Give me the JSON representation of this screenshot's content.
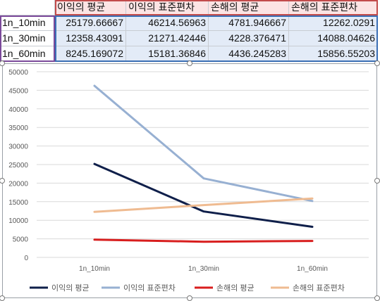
{
  "table": {
    "headers": [
      "이익의 평균",
      "이익의 표준편차",
      "손해의 평균",
      "손해의 표준편차"
    ],
    "rows": [
      {
        "label": "1n_10min",
        "values": [
          "25179.66667",
          "46214.56963",
          "4781.946667",
          "12262.0291"
        ]
      },
      {
        "label": "1n_30min",
        "values": [
          "12358.43091",
          "21271.42446",
          "4228.376471",
          "14088.04626"
        ]
      },
      {
        "label": "1n_60min",
        "values": [
          "8245.169072",
          "15181.36846",
          "4436.245283",
          "15856.55203"
        ]
      }
    ]
  },
  "chart_data": {
    "type": "line",
    "categories": [
      "1n_10min",
      "1n_30min",
      "1n_60min"
    ],
    "series": [
      {
        "name": "이익의 평균",
        "values": [
          25179.66667,
          12358.43091,
          8245.169072
        ],
        "color": "#0f1f4a"
      },
      {
        "name": "이익의 표준편차",
        "values": [
          46214.56963,
          21271.42446,
          15181.36846
        ],
        "color": "#97b0d2"
      },
      {
        "name": "손해의 평균",
        "values": [
          4781.946667,
          4228.376471,
          4436.245283
        ],
        "color": "#d81e1e"
      },
      {
        "name": "손해의 표준편차",
        "values": [
          12262.0291,
          14088.04626,
          15856.55203
        ],
        "color": "#efbb91"
      }
    ],
    "ylim": [
      0,
      50000
    ],
    "yticks": [
      0,
      5000,
      10000,
      15000,
      20000,
      25000,
      30000,
      35000,
      40000,
      45000,
      50000
    ],
    "grid": true,
    "legend": "bottom"
  }
}
